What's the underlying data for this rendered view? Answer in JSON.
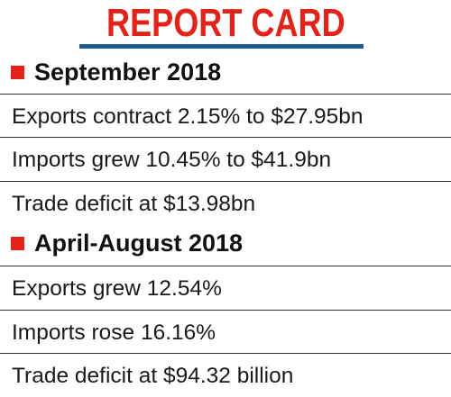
{
  "title": "REPORT CARD",
  "sections": [
    {
      "heading": "September 2018",
      "items": [
        "Exports contract 2.15% to $27.95bn",
        "Imports grew 10.45% to $41.9bn",
        "Trade deficit at $13.98bn"
      ]
    },
    {
      "heading": "April-August 2018",
      "items": [
        "Exports grew 12.54%",
        "Imports rose 16.16%",
        "Trade deficit at $94.32 billion"
      ]
    }
  ],
  "colors": {
    "title": "#e2231a",
    "bullet": "#e2231a",
    "title_rule": "#1e5a96",
    "rule": "#333333"
  }
}
